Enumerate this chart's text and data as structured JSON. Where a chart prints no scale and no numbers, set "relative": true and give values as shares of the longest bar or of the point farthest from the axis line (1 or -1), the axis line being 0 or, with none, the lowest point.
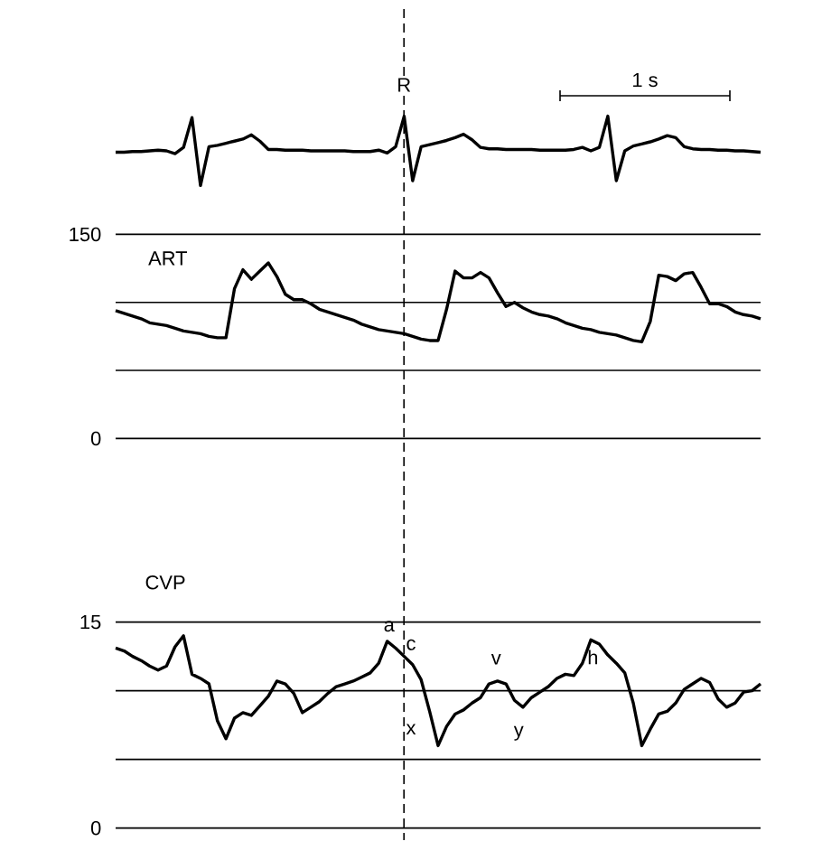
{
  "chart_data": [
    {
      "type": "line",
      "relative": true,
      "tick_labels": false,
      "annotations": [
        "R",
        "1 s"
      ],
      "categories": [
        null,
        null,
        null,
        null,
        null,
        null,
        null,
        null,
        null,
        null,
        null,
        null,
        null,
        null,
        null,
        null,
        null,
        null,
        null,
        null,
        null,
        null,
        null,
        null,
        null,
        null,
        null,
        null,
        null,
        null,
        null,
        null,
        null,
        null,
        null,
        null,
        null,
        null,
        null,
        null,
        null,
        null,
        null,
        null,
        null,
        null,
        null,
        null,
        null,
        null,
        null,
        null,
        null,
        null,
        null,
        null,
        null,
        null,
        null,
        null,
        null,
        null,
        null,
        null,
        null,
        null,
        null,
        null,
        null,
        null,
        null,
        null,
        null,
        null,
        null,
        null,
        null
      ],
      "series": [
        {
          "color": "#000000",
          "values": [
            0.48,
            0.48,
            0.49,
            0.49,
            0.5,
            0.51,
            0.5,
            0.46,
            0.55,
            0.98,
            0.0,
            0.56,
            0.58,
            0.61,
            0.64,
            0.67,
            0.73,
            0.64,
            0.52,
            0.52,
            0.51,
            0.51,
            0.51,
            0.5,
            0.5,
            0.5,
            0.5,
            0.5,
            0.49,
            0.49,
            0.49,
            0.51,
            0.47,
            0.56,
            1.0,
            0.07,
            0.56,
            0.59,
            0.62,
            0.65,
            0.69,
            0.74,
            0.66,
            0.55,
            0.53,
            0.53,
            0.52,
            0.52,
            0.52,
            0.52,
            0.51,
            0.51,
            0.51,
            0.51,
            0.52,
            0.55,
            0.5,
            0.55,
            1.0,
            0.07,
            0.5,
            0.57,
            0.6,
            0.63,
            0.67,
            0.72,
            0.69,
            0.56,
            0.53,
            0.52,
            0.52,
            0.51,
            0.51,
            0.5,
            0.5,
            0.49,
            0.48
          ]
        }
      ]
    },
    {
      "type": "line",
      "title": "ART",
      "ylim": [
        0,
        150
      ],
      "yticks": [
        0,
        {
          "value": 50,
          "label": null
        },
        {
          "value": 100,
          "label": null
        },
        150
      ],
      "grid": "y",
      "tick_labels": "y",
      "categories": [
        null,
        null,
        null,
        null,
        null,
        null,
        null,
        null,
        null,
        null,
        null,
        null,
        null,
        null,
        null,
        null,
        null,
        null,
        null,
        null,
        null,
        null,
        null,
        null,
        null,
        null,
        null,
        null,
        null,
        null,
        null,
        null,
        null,
        null,
        null,
        null,
        null,
        null,
        null,
        null,
        null,
        null,
        null,
        null,
        null,
        null,
        null,
        null,
        null,
        null,
        null,
        null,
        null,
        null,
        null,
        null,
        null,
        null,
        null,
        null,
        null,
        null,
        null,
        null,
        null,
        null,
        null,
        null,
        null,
        null,
        null,
        null,
        null,
        null,
        null,
        null,
        null
      ],
      "series": [
        {
          "color": "#000000",
          "values": [
            94,
            92,
            90,
            88,
            85,
            84,
            83,
            81,
            79,
            78,
            77,
            75,
            74,
            74,
            110,
            124,
            117,
            123,
            129,
            119,
            106,
            102,
            102,
            99,
            95,
            93,
            91,
            89,
            87,
            84,
            82,
            80,
            79,
            78,
            77,
            75,
            73,
            72,
            72,
            95,
            123,
            118,
            118,
            122,
            118,
            107,
            97,
            100,
            96,
            93,
            91,
            90,
            88,
            85,
            83,
            81,
            80,
            78,
            77,
            76,
            74,
            72,
            71,
            86,
            120,
            119,
            116,
            121,
            122,
            111,
            99,
            99,
            97,
            93,
            91,
            90,
            88
          ]
        }
      ]
    },
    {
      "type": "line",
      "title": "CVP",
      "ylim": [
        0,
        15
      ],
      "yticks": [
        0,
        {
          "value": 5,
          "label": null
        },
        {
          "value": 10,
          "label": null
        },
        15
      ],
      "grid": "y",
      "tick_labels": "y",
      "categories": [
        null,
        null,
        null,
        null,
        null,
        null,
        null,
        null,
        null,
        null,
        null,
        null,
        null,
        null,
        null,
        null,
        null,
        null,
        null,
        null,
        null,
        null,
        null,
        null,
        null,
        null,
        null,
        null,
        null,
        null,
        null,
        null,
        null,
        null,
        null,
        null,
        null,
        null,
        null,
        null,
        null,
        null,
        null,
        null,
        null,
        null,
        null,
        null,
        null,
        null,
        null,
        null,
        null,
        null,
        null,
        null,
        null,
        null,
        null,
        null,
        null,
        null,
        null,
        null,
        null,
        null,
        null,
        null,
        null,
        null,
        null,
        null,
        null,
        null,
        null,
        null,
        null
      ],
      "annotations": [
        "a",
        "c",
        "x",
        "v",
        "y",
        "h"
      ],
      "series": [
        {
          "color": "#000000",
          "values": [
            13.1,
            12.9,
            12.5,
            12.2,
            11.8,
            11.5,
            11.8,
            13.2,
            14.0,
            11.2,
            10.9,
            10.5,
            7.8,
            6.5,
            8.0,
            8.4,
            8.2,
            8.9,
            9.6,
            10.7,
            10.5,
            9.8,
            8.4,
            8.8,
            9.2,
            9.8,
            10.3,
            10.5,
            10.7,
            11.0,
            11.3,
            12.0,
            13.6,
            13.1,
            12.5,
            11.9,
            10.8,
            8.5,
            6.0,
            7.4,
            8.3,
            8.6,
            9.1,
            9.5,
            10.5,
            10.7,
            10.5,
            9.3,
            8.8,
            9.5,
            9.9,
            10.3,
            10.9,
            11.2,
            11.1,
            12.0,
            13.7,
            13.4,
            12.6,
            12.0,
            11.3,
            9.1,
            6.0,
            7.2,
            8.3,
            8.5,
            9.1,
            10.1,
            10.5,
            10.9,
            10.6,
            9.4,
            8.8,
            9.1,
            9.9,
            10.0,
            10.5
          ]
        }
      ]
    }
  ]
}
